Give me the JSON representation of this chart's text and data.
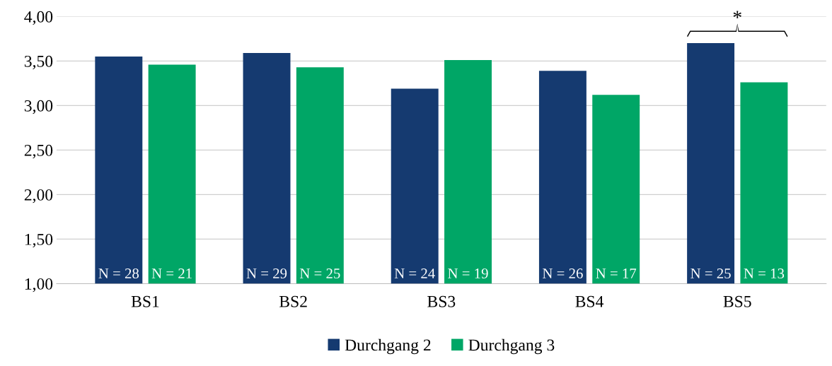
{
  "chart_data": {
    "type": "bar",
    "categories": [
      "BS1",
      "BS2",
      "BS3",
      "BS4",
      "BS5"
    ],
    "series": [
      {
        "name": "Durchgang 2",
        "color": "#153a70",
        "values": [
          3.55,
          3.59,
          3.19,
          3.39,
          3.7
        ]
      },
      {
        "name": "Durchgang 3",
        "color": "#00a666",
        "values": [
          3.46,
          3.43,
          3.51,
          3.12,
          3.26
        ]
      }
    ],
    "ylim": [
      1,
      4
    ],
    "yticks": [
      {
        "value": 1,
        "label": "1,00"
      },
      {
        "value": 1.5,
        "label": "1,50"
      },
      {
        "value": 2,
        "label": "2,00"
      },
      {
        "value": 2.5,
        "label": "2,50"
      },
      {
        "value": 3,
        "label": "3,00"
      },
      {
        "value": 3.5,
        "label": "3,50"
      },
      {
        "value": 4,
        "label": "4,00"
      }
    ],
    "grid": "y",
    "legend": "bottom",
    "annotations": [
      "N = 28",
      "N = 21",
      "N = 29",
      "N = 25",
      "N = 24",
      "N = 19",
      "N = 26",
      "N = 17",
      "N = 25",
      "N = 13",
      "*"
    ]
  }
}
